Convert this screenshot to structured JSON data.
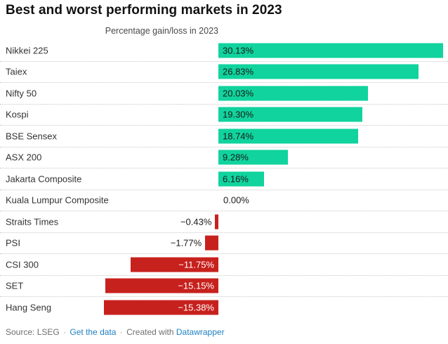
{
  "title": "Best and worst performing markets in 2023",
  "subtitle": "Percentage gain/loss in 2023",
  "footer": {
    "source_text": "Source: LSEG",
    "separator": "·",
    "get_data_link": "Get the data",
    "created_with_text": "Created with",
    "datawrapper_link": "Datawrapper"
  },
  "colors": {
    "positive_bar": "#10d39d",
    "negative_bar": "#c7211d",
    "link_blue": "#1e80c2",
    "label_dark": "#333333",
    "value_on_red": "#ffffff"
  },
  "chart_data": {
    "type": "bar",
    "orientation": "horizontal",
    "title": "Best and worst performing markets in 2023",
    "subtitle": "Percentage gain/loss in 2023",
    "xlabel": "Percentage gain/loss in 2023",
    "ylabel": "",
    "xlim": [
      -15.38,
      30.13
    ],
    "grid": "dotted row separators only, zero baseline implicit",
    "legend": "none",
    "categories": [
      "Nikkei 225",
      "Taiex",
      "Nifty 50",
      "Kospi",
      "BSE Sensex",
      "ASX 200",
      "Jakarta Composite",
      "Kuala Lumpur Composite",
      "Straits Times",
      "PSI",
      "CSI 300",
      "SET",
      "Hang Seng"
    ],
    "values": [
      30.13,
      26.83,
      20.03,
      19.3,
      18.74,
      9.28,
      6.16,
      0.0,
      -0.43,
      -1.77,
      -11.75,
      -15.15,
      -15.38
    ],
    "value_labels": [
      "30.13%",
      "26.83%",
      "20.03%",
      "19.30%",
      "18.74%",
      "9.28%",
      "6.16%",
      "0.00%",
      "−0.43%",
      "−1.77%",
      "−11.75%",
      "−15.15%",
      "−15.38%"
    ]
  }
}
